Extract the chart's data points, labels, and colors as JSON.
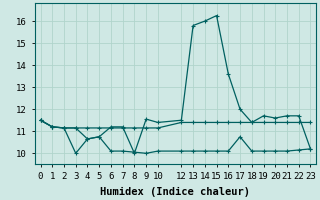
{
  "xlabel": "Humidex (Indice chaleur)",
  "background_color": "#cfe8e4",
  "grid_color": "#b0d4cc",
  "line_color": "#006060",
  "xlim": [
    -0.5,
    23.5
  ],
  "ylim": [
    9.5,
    16.8
  ],
  "yticks": [
    10,
    11,
    12,
    13,
    14,
    15,
    16
  ],
  "xticks": [
    0,
    1,
    2,
    3,
    4,
    5,
    6,
    7,
    8,
    9,
    10,
    12,
    13,
    14,
    15,
    16,
    17,
    18,
    19,
    20,
    21,
    22,
    23
  ],
  "xtick_labels": [
    "0",
    "1",
    "2",
    "3",
    "4",
    "5",
    "6",
    "7",
    "8",
    "9",
    "10",
    "12",
    "13",
    "14",
    "15",
    "16",
    "17",
    "18",
    "19",
    "20",
    "21",
    "22",
    "23"
  ],
  "series1_x": [
    0,
    1,
    2,
    3,
    4,
    5,
    6,
    7,
    8,
    9,
    10,
    12,
    13,
    14,
    15,
    16,
    17,
    18,
    19,
    20,
    21,
    22,
    23
  ],
  "series1_y": [
    11.5,
    11.2,
    11.15,
    11.15,
    11.15,
    11.15,
    11.15,
    11.15,
    11.15,
    11.15,
    11.15,
    11.4,
    11.4,
    11.4,
    11.4,
    11.4,
    11.4,
    11.4,
    11.4,
    11.4,
    11.4,
    11.4,
    11.4
  ],
  "series2_x": [
    0,
    1,
    2,
    3,
    4,
    5,
    6,
    7,
    8,
    9,
    10,
    12,
    13,
    14,
    15,
    16,
    17,
    18,
    19,
    20,
    21,
    22,
    23
  ],
  "series2_y": [
    11.5,
    11.2,
    11.15,
    10.0,
    10.65,
    10.75,
    10.1,
    10.1,
    10.05,
    10.0,
    10.1,
    10.1,
    10.1,
    10.1,
    10.1,
    10.1,
    10.75,
    10.1,
    10.1,
    10.1,
    10.1,
    10.15,
    10.2
  ],
  "series3_x": [
    0,
    1,
    2,
    3,
    4,
    5,
    6,
    7,
    8,
    9,
    10,
    12,
    13,
    14,
    15,
    16,
    17,
    18,
    19,
    20,
    21,
    22,
    23
  ],
  "series3_y": [
    11.5,
    11.2,
    11.15,
    11.15,
    10.65,
    10.75,
    11.2,
    11.2,
    10.0,
    11.55,
    11.4,
    11.5,
    15.8,
    16.0,
    16.25,
    13.6,
    12.0,
    11.4,
    11.7,
    11.6,
    11.7,
    11.7,
    10.2
  ],
  "xlabel_fontsize": 7.5,
  "tick_fontsize": 6.5,
  "linewidth": 0.9,
  "marker_size": 2.5
}
